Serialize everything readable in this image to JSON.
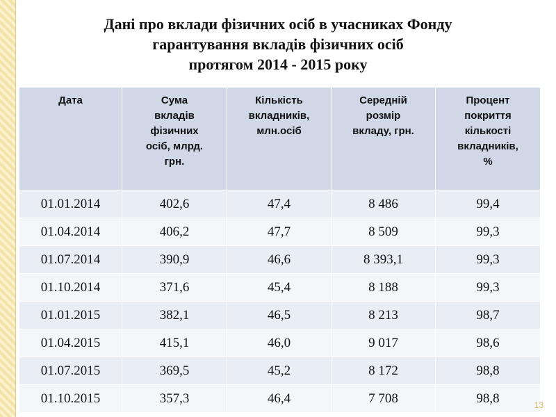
{
  "title": "Дані про вклади фізичних осіб в учасниках Фонду\nгарантування вкладів фізичних осіб\nпротягом 2014 - 2015 року",
  "table": {
    "header": [
      "Дата",
      "Сума\nвкладів\nфізичних\nосіб, млрд.\nгрн.",
      "Кількість\nвкладників,\nмлн.осіб",
      "Середній\nрозмір\nвкладу, грн.",
      "Процент\nпокриття\nкількості\nвкладників,\n%"
    ],
    "rows": [
      [
        "01.01.2014",
        "402,6",
        "47,4",
        "8 486",
        "99,4"
      ],
      [
        "01.04.2014",
        "406,2",
        "47,7",
        "8 509",
        "99,3"
      ],
      [
        "01.07.2014",
        "390,9",
        "46,6",
        "8 393,1",
        "99,3"
      ],
      [
        "01.10.2014",
        "371,6",
        "45,4",
        "8 188",
        "99,3"
      ],
      [
        "01.01.2015",
        "382,1",
        "46,5",
        "8 213",
        "98,7"
      ],
      [
        "01.04.2015",
        "415,1",
        "46,0",
        "9 017",
        "98,6"
      ],
      [
        "01.07.2015",
        "369,5",
        "45,2",
        "8 172",
        "98,8"
      ],
      [
        "01.10.2015",
        "357,3",
        "46,4",
        "7 708",
        "98,8"
      ]
    ]
  },
  "page_number": "13"
}
